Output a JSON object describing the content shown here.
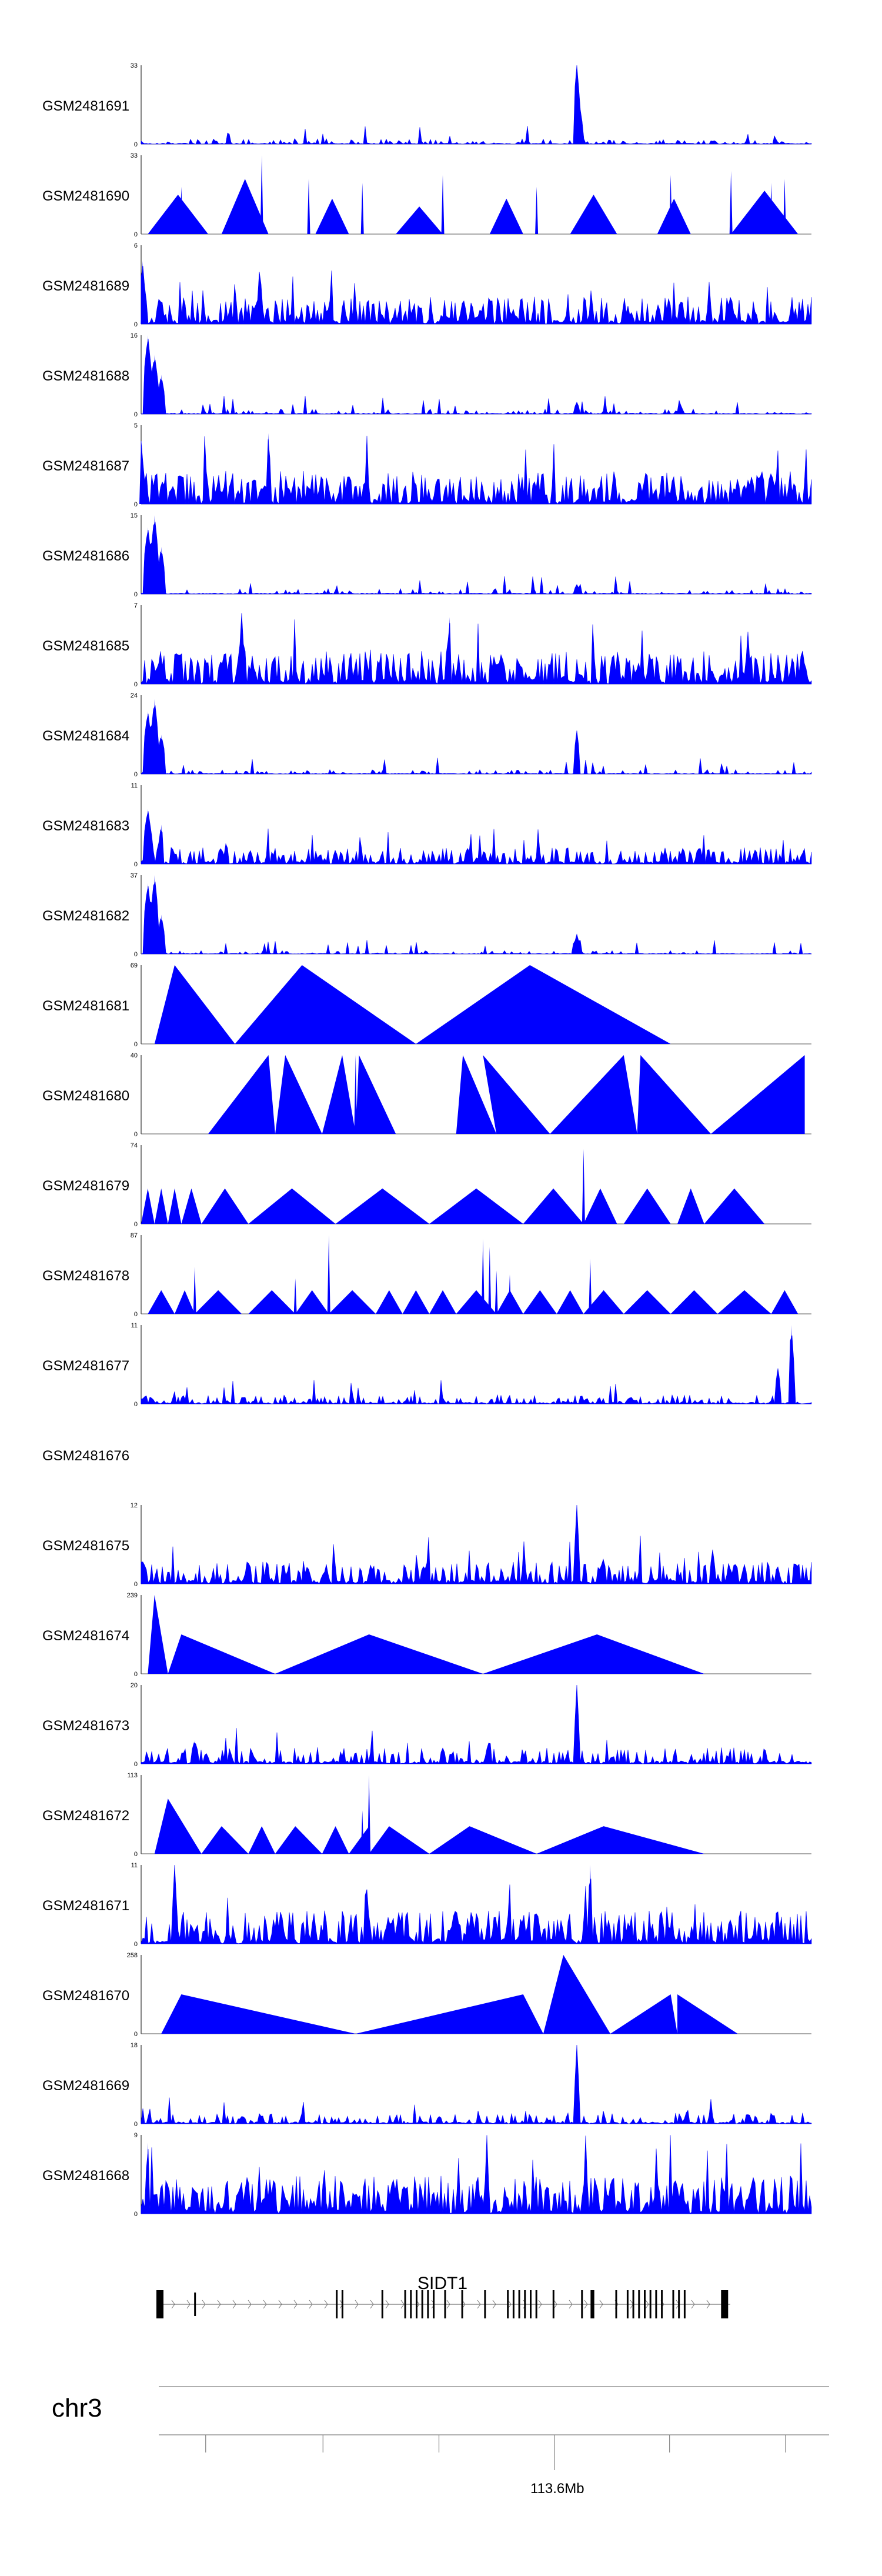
{
  "chart_data": {
    "type": "area",
    "title": "",
    "xlabel": "",
    "ylabel": "",
    "chromosome": "chr3",
    "coordinate_label": "113.6Mb",
    "gene": {
      "name": "SIDT1",
      "strand": "+"
    },
    "colors": {
      "signal": "#0000ff",
      "gene": "#000000",
      "axis": "#7f7f7f"
    },
    "tracks": [
      {
        "name": "GSM2481691",
        "ymax": "33",
        "ymin": "0",
        "pattern": "noise",
        "density": 0.25,
        "base": 0.05,
        "peaks": [
          [
            0.65,
            1.0,
            0.005
          ],
          [
            0.655,
            0.45,
            0.004
          ]
        ]
      },
      {
        "name": "GSM2481690",
        "ymax": "33",
        "ymin": "0",
        "pattern": "triangles",
        "segments": [
          [
            0.01,
            0.1,
            0.5
          ],
          [
            0.12,
            0.19,
            0.7
          ],
          [
            0.26,
            0.31,
            0.45
          ],
          [
            0.38,
            0.45,
            0.35
          ],
          [
            0.52,
            0.57,
            0.45
          ],
          [
            0.64,
            0.71,
            0.5
          ],
          [
            0.77,
            0.82,
            0.45
          ],
          [
            0.88,
            0.98,
            0.55
          ]
        ],
        "spikes": [
          [
            0.06,
            0.6
          ],
          [
            0.18,
            1.0
          ],
          [
            0.25,
            0.7
          ],
          [
            0.33,
            0.65
          ],
          [
            0.45,
            0.75
          ],
          [
            0.59,
            0.6
          ],
          [
            0.79,
            0.75
          ],
          [
            0.88,
            0.8
          ],
          [
            0.94,
            0.65
          ],
          [
            0.96,
            0.7
          ]
        ]
      },
      {
        "name": "GSM2481689",
        "ymax": "6",
        "ymin": "0",
        "pattern": "noise",
        "density": 0.55,
        "base": 0.25,
        "peaks": [
          [
            0.002,
            0.8,
            0.004
          ]
        ]
      },
      {
        "name": "GSM2481688",
        "ymax": "16",
        "ymin": "0",
        "pattern": "noise",
        "density": 0.15,
        "base": 0.05,
        "peaks": [
          [
            0.01,
            1.0,
            0.006
          ],
          [
            0.02,
            0.75,
            0.006
          ],
          [
            0.03,
            0.5,
            0.005
          ],
          [
            0.65,
            0.15,
            0.004
          ]
        ]
      },
      {
        "name": "GSM2481687",
        "ymax": "5",
        "ymin": "0",
        "pattern": "noise",
        "density": 0.6,
        "base": 0.3,
        "peaks": [
          [
            0.0,
            0.8,
            0.004
          ],
          [
            0.19,
            0.9,
            0.003
          ]
        ]
      },
      {
        "name": "GSM2481686",
        "ymax": "15",
        "ymin": "0",
        "pattern": "noise",
        "density": 0.15,
        "base": 0.05,
        "peaks": [
          [
            0.01,
            0.85,
            0.006
          ],
          [
            0.02,
            1.0,
            0.006
          ],
          [
            0.03,
            0.6,
            0.005
          ],
          [
            0.65,
            0.12,
            0.004
          ]
        ]
      },
      {
        "name": "GSM2481685",
        "ymax": "7",
        "ymin": "0",
        "pattern": "noise",
        "density": 0.6,
        "base": 0.3,
        "peaks": [
          [
            0.15,
            0.9,
            0.003
          ],
          [
            0.46,
            0.85,
            0.003
          ]
        ]
      },
      {
        "name": "GSM2481684",
        "ymax": "24",
        "ymin": "0",
        "pattern": "noise",
        "density": 0.15,
        "base": 0.04,
        "peaks": [
          [
            0.01,
            0.8,
            0.006
          ],
          [
            0.02,
            0.95,
            0.006
          ],
          [
            0.03,
            0.5,
            0.006
          ],
          [
            0.65,
            0.55,
            0.004
          ]
        ]
      },
      {
        "name": "GSM2481683",
        "ymax": "11",
        "ymin": "0",
        "pattern": "noise",
        "density": 0.45,
        "base": 0.15,
        "peaks": [
          [
            0.01,
            0.7,
            0.006
          ],
          [
            0.03,
            0.5,
            0.004
          ]
        ]
      },
      {
        "name": "GSM2481682",
        "ymax": "37",
        "ymin": "0",
        "pattern": "noise",
        "density": 0.15,
        "base": 0.03,
        "peaks": [
          [
            0.01,
            0.9,
            0.006
          ],
          [
            0.02,
            1.0,
            0.006
          ],
          [
            0.03,
            0.5,
            0.005
          ],
          [
            0.65,
            0.25,
            0.004
          ]
        ]
      },
      {
        "name": "GSM2481681",
        "ymax": "69",
        "ymin": "0",
        "pattern": "triangles",
        "segments": [
          [
            0.02,
            0.14,
            1.0
          ],
          [
            0.14,
            0.41,
            1.0
          ],
          [
            0.41,
            0.79,
            1.0
          ]
        ],
        "apex": [
          0.05,
          0.24,
          0.58
        ],
        "spikes": []
      },
      {
        "name": "GSM2481680",
        "ymax": "40",
        "ymin": "0",
        "pattern": "triangles",
        "segments": [
          [
            0.1,
            0.2,
            1.0
          ],
          [
            0.2,
            0.27,
            1.0
          ],
          [
            0.27,
            0.32,
            1.0
          ],
          [
            0.32,
            0.38,
            1.0
          ],
          [
            0.47,
            0.53,
            1.0
          ],
          [
            0.53,
            0.61,
            1.0
          ],
          [
            0.61,
            0.74,
            1.0
          ],
          [
            0.74,
            0.85,
            1.0
          ],
          [
            0.85,
            0.99,
            1.0
          ]
        ],
        "apex": [
          0.19,
          0.215,
          0.3,
          0.325,
          0.48,
          0.51,
          0.72,
          0.745,
          0.99
        ],
        "spikes": [
          [
            0.32,
            1.0
          ],
          [
            0.48,
            1.0
          ]
        ]
      },
      {
        "name": "GSM2481679",
        "ymax": "74",
        "ymin": "0",
        "pattern": "triangles",
        "segments": [
          [
            0.0,
            0.02,
            0.45
          ],
          [
            0.02,
            0.04,
            0.45
          ],
          [
            0.04,
            0.06,
            0.45
          ],
          [
            0.06,
            0.09,
            0.45
          ],
          [
            0.09,
            0.16,
            0.45
          ],
          [
            0.16,
            0.29,
            0.45
          ],
          [
            0.29,
            0.43,
            0.45
          ],
          [
            0.43,
            0.57,
            0.45
          ],
          [
            0.57,
            0.66,
            0.45
          ],
          [
            0.66,
            0.71,
            0.45
          ],
          [
            0.72,
            0.79,
            0.45
          ],
          [
            0.8,
            0.84,
            0.45
          ],
          [
            0.84,
            0.93,
            0.45
          ]
        ],
        "spikes": [
          [
            0.66,
            0.95
          ]
        ]
      },
      {
        "name": "GSM2481678",
        "ymax": "87",
        "ymin": "0",
        "pattern": "triangles",
        "segments": [
          [
            0.01,
            0.05,
            0.3
          ],
          [
            0.05,
            0.08,
            0.3
          ],
          [
            0.08,
            0.15,
            0.3
          ],
          [
            0.16,
            0.23,
            0.3
          ],
          [
            0.23,
            0.28,
            0.3
          ],
          [
            0.28,
            0.35,
            0.3
          ],
          [
            0.35,
            0.39,
            0.3
          ],
          [
            0.39,
            0.43,
            0.3
          ],
          [
            0.43,
            0.47,
            0.3
          ],
          [
            0.47,
            0.53,
            0.3
          ],
          [
            0.53,
            0.57,
            0.3
          ],
          [
            0.57,
            0.62,
            0.3
          ],
          [
            0.62,
            0.66,
            0.3
          ],
          [
            0.66,
            0.72,
            0.3
          ],
          [
            0.72,
            0.79,
            0.3
          ],
          [
            0.79,
            0.86,
            0.3
          ],
          [
            0.86,
            0.94,
            0.3
          ],
          [
            0.94,
            0.98,
            0.3
          ]
        ],
        "spikes": [
          [
            0.08,
            0.6
          ],
          [
            0.23,
            0.45
          ],
          [
            0.28,
            1.0
          ],
          [
            0.51,
            0.95
          ],
          [
            0.52,
            0.85
          ],
          [
            0.53,
            0.55
          ],
          [
            0.55,
            0.5
          ],
          [
            0.67,
            0.7
          ]
        ]
      },
      {
        "name": "GSM2481677",
        "ymax": "11",
        "ymin": "0",
        "pattern": "noise",
        "density": 0.3,
        "base": 0.08,
        "peaks": [
          [
            0.97,
            1.0,
            0.004
          ],
          [
            0.95,
            0.45,
            0.004
          ]
        ]
      },
      {
        "name": "GSM2481676",
        "ymax": "",
        "ymin": "",
        "pattern": "empty"
      },
      {
        "name": "GSM2481675",
        "ymax": "12",
        "ymin": "0",
        "pattern": "noise",
        "density": 0.45,
        "base": 0.2,
        "peaks": [
          [
            0.65,
            1.0,
            0.003
          ]
        ]
      },
      {
        "name": "GSM2481674",
        "ymax": "239",
        "ymin": "0",
        "pattern": "triangles",
        "segments": [
          [
            0.01,
            0.04,
            1.0
          ],
          [
            0.04,
            0.2,
            0.5
          ],
          [
            0.2,
            0.51,
            0.5
          ],
          [
            0.51,
            0.84,
            0.5
          ]
        ],
        "apex": [
          0.02,
          0.06,
          0.34,
          0.68
        ],
        "spikes": []
      },
      {
        "name": "GSM2481673",
        "ymax": "20",
        "ymin": "0",
        "pattern": "noise",
        "density": 0.3,
        "base": 0.15,
        "peaks": [
          [
            0.65,
            1.0,
            0.003
          ],
          [
            0.08,
            0.3,
            0.005
          ],
          [
            0.45,
            0.2,
            0.005
          ]
        ]
      },
      {
        "name": "GSM2481672",
        "ymax": "113",
        "ymin": "0",
        "pattern": "triangles",
        "segments": [
          [
            0.02,
            0.09,
            0.7
          ],
          [
            0.09,
            0.16,
            0.35
          ],
          [
            0.16,
            0.2,
            0.35
          ],
          [
            0.2,
            0.27,
            0.35
          ],
          [
            0.27,
            0.31,
            0.35
          ],
          [
            0.31,
            0.34,
            0.35
          ],
          [
            0.34,
            0.43,
            0.35
          ],
          [
            0.43,
            0.59,
            0.35
          ],
          [
            0.59,
            0.84,
            0.35
          ]
        ],
        "apex": [
          0.04,
          0.12,
          0.18,
          0.23,
          0.29,
          0.34,
          0.37,
          0.49,
          0.69
        ],
        "spikes": [
          [
            0.34,
            1.0
          ],
          [
            0.33,
            0.55
          ]
        ]
      },
      {
        "name": "GSM2481671",
        "ymax": "11",
        "ymin": "0",
        "pattern": "noise",
        "density": 0.55,
        "base": 0.3,
        "peaks": [
          [
            0.05,
            1.0,
            0.003
          ],
          [
            0.67,
            1.0,
            0.003
          ]
        ]
      },
      {
        "name": "GSM2481670",
        "ymax": "258",
        "ymin": "0",
        "pattern": "triangles",
        "segments": [
          [
            0.03,
            0.32,
            0.5
          ],
          [
            0.32,
            0.6,
            0.5
          ],
          [
            0.6,
            0.7,
            1.0
          ],
          [
            0.7,
            0.8,
            0.5
          ],
          [
            0.8,
            0.89,
            0.5
          ]
        ],
        "apex": [
          0.06,
          0.57,
          0.63,
          0.79,
          0.8
        ],
        "spikes": []
      },
      {
        "name": "GSM2481669",
        "ymax": "18",
        "ymin": "0",
        "pattern": "noise",
        "density": 0.25,
        "base": 0.1,
        "peaks": [
          [
            0.65,
            1.0,
            0.003
          ]
        ]
      },
      {
        "name": "GSM2481668",
        "ymax": "9",
        "ymin": "0",
        "pattern": "noise",
        "density": 0.65,
        "base": 0.35,
        "peaks": [
          [
            0.01,
            0.9,
            0.003
          ]
        ]
      }
    ],
    "gene_model": {
      "exons": [
        0.0,
        0.31,
        0.32,
        0.39,
        0.43,
        0.44,
        0.45,
        0.46,
        0.47,
        0.48,
        0.5,
        0.53,
        0.57,
        0.61,
        0.62,
        0.63,
        0.64,
        0.65,
        0.66,
        0.69,
        0.74,
        0.76,
        0.8,
        0.82,
        0.83,
        0.84,
        0.85,
        0.86,
        0.87,
        0.88,
        0.9,
        0.91,
        0.92,
        0.99
      ]
    },
    "ticks": [
      0.07,
      0.245,
      0.418,
      0.59,
      0.762,
      0.935
    ]
  }
}
